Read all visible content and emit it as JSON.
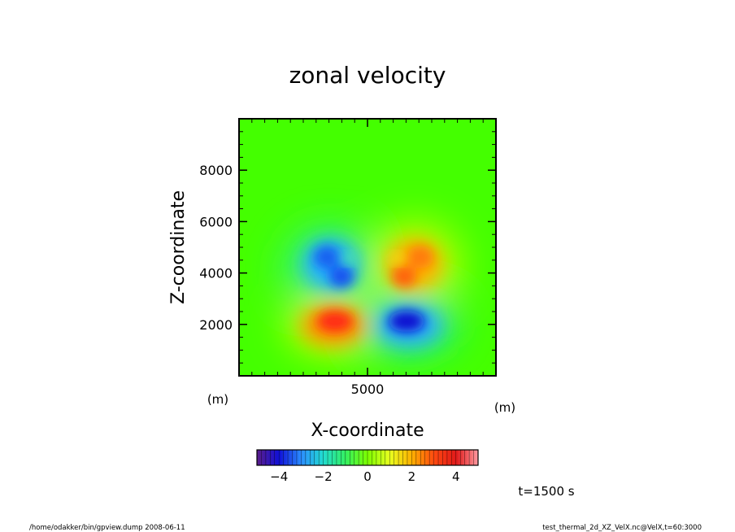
{
  "chart_data": {
    "type": "heatmap",
    "title": "zonal velocity",
    "xlabel": "X-coordinate",
    "ylabel": "Z-coordinate",
    "x_unit": "(m)",
    "y_unit": "(m)",
    "xlim": [
      0,
      10000
    ],
    "ylim": [
      0,
      10000
    ],
    "x_ticks": [
      {
        "value": 5000,
        "label": "5000"
      }
    ],
    "y_ticks": [
      {
        "value": 2000,
        "label": "2000"
      },
      {
        "value": 4000,
        "label": "4000"
      },
      {
        "value": 6000,
        "label": "6000"
      },
      {
        "value": 8000,
        "label": "8000"
      }
    ],
    "color_range": [
      -5,
      5
    ],
    "colorbar_ticks": [
      {
        "value": -4,
        "label": "−4"
      },
      {
        "value": -2,
        "label": "−2"
      },
      {
        "value": 0,
        "label": "0"
      },
      {
        "value": 2,
        "label": "2"
      },
      {
        "value": 4,
        "label": "4"
      }
    ],
    "features": [
      {
        "name": "negative-upper-left",
        "x": 3500,
        "z": 4300,
        "value": -3.2
      },
      {
        "name": "positive-upper-right",
        "x": 6800,
        "z": 4200,
        "value": 3.3
      },
      {
        "name": "positive-lower-left",
        "x": 4000,
        "z": 2100,
        "value": 4.8
      },
      {
        "name": "negative-lower-right",
        "x": 6300,
        "z": 2100,
        "value": -4.8
      }
    ],
    "background_value": 0.0
  },
  "time_label": "t=1500 s",
  "footer": {
    "left": "/home/odakker/bin/gpview.dump  2008-06-11",
    "right": "test_thermal_2d_XZ_VelX.nc@VelX,t=60:3000"
  },
  "colors": {
    "colormap": [
      "#5a1d8a",
      "#1010d8",
      "#2a8cff",
      "#22dcd0",
      "#33f060",
      "#7cff00",
      "#e8ff20",
      "#ffb000",
      "#ff4a10",
      "#e01818",
      "#ff9aa0"
    ]
  }
}
